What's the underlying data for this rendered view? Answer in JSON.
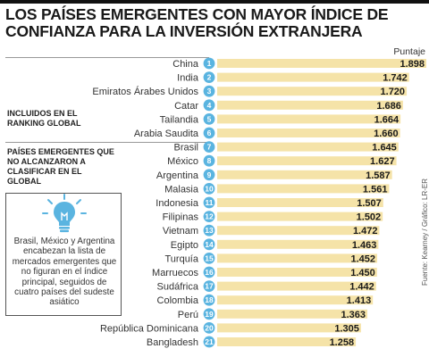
{
  "title": "LOS PAÍSES EMERGENTES CON MAYOR ÍNDICE DE CONFIANZA PARA LA INVERSIÓN EXTRANJERA",
  "column_label": "Puntaje",
  "groups": {
    "included": "INCLUIDOS EN EL RANKING GLOBAL",
    "excluded": "PAÍSES EMERGENTES QUE NO ALCANZARON A CLASIFICAR EN EL GLOBAL"
  },
  "note": "Brasil, México y Argentina encabezan la lista de mercados emergentes que no figuran en el índice principal, seguidos de cuatro países del sudeste asiático",
  "credit": "Fuente: Kearney / Gráfico: LR-ER",
  "colors": {
    "bar": "#f5e3a8",
    "rank_circle": "#5ab4e0",
    "icon": "#5ab4e0"
  },
  "chart_data": {
    "type": "bar",
    "orientation": "horizontal",
    "title": "LOS PAÍSES EMERGENTES CON MAYOR ÍNDICE DE CONFIANZA PARA LA INVERSIÓN EXTRANJERA",
    "xlabel": "Puntaje",
    "ylabel": "",
    "xlim": [
      0,
      1.898
    ],
    "categories": [
      "China",
      "India",
      "Emiratos Árabes Unidos",
      "Catar",
      "Tailandia",
      "Arabia Saudita",
      "Brasil",
      "México",
      "Argentina",
      "Malasia",
      "Indonesia",
      "Filipinas",
      "Vietnam",
      "Egipto",
      "Turquía",
      "Marruecos",
      "Sudáfrica",
      "Colombia",
      "Perú",
      "República Dominicana",
      "Bangladesh"
    ],
    "ranks": [
      "1",
      "2",
      "3",
      "4",
      "5",
      "6",
      "7",
      "8",
      "9",
      "10",
      "11",
      "12",
      "13",
      "14",
      "15",
      "16",
      "17",
      "18",
      "19",
      "20",
      "21"
    ],
    "values": [
      1.898,
      1.742,
      1.72,
      1.686,
      1.664,
      1.66,
      1.645,
      1.627,
      1.587,
      1.561,
      1.507,
      1.502,
      1.472,
      1.463,
      1.452,
      1.45,
      1.442,
      1.413,
      1.363,
      1.305,
      1.258
    ],
    "value_labels": [
      "1.898",
      "1.742",
      "1.720",
      "1.686",
      "1.664",
      "1.660",
      "1.645",
      "1.627",
      "1.587",
      "1.561",
      "1.507",
      "1.502",
      "1.472",
      "1.463",
      "1.452",
      "1.450",
      "1.442",
      "1.413",
      "1.363",
      "1.305",
      "1.258"
    ],
    "grid": false,
    "legend": "none"
  }
}
